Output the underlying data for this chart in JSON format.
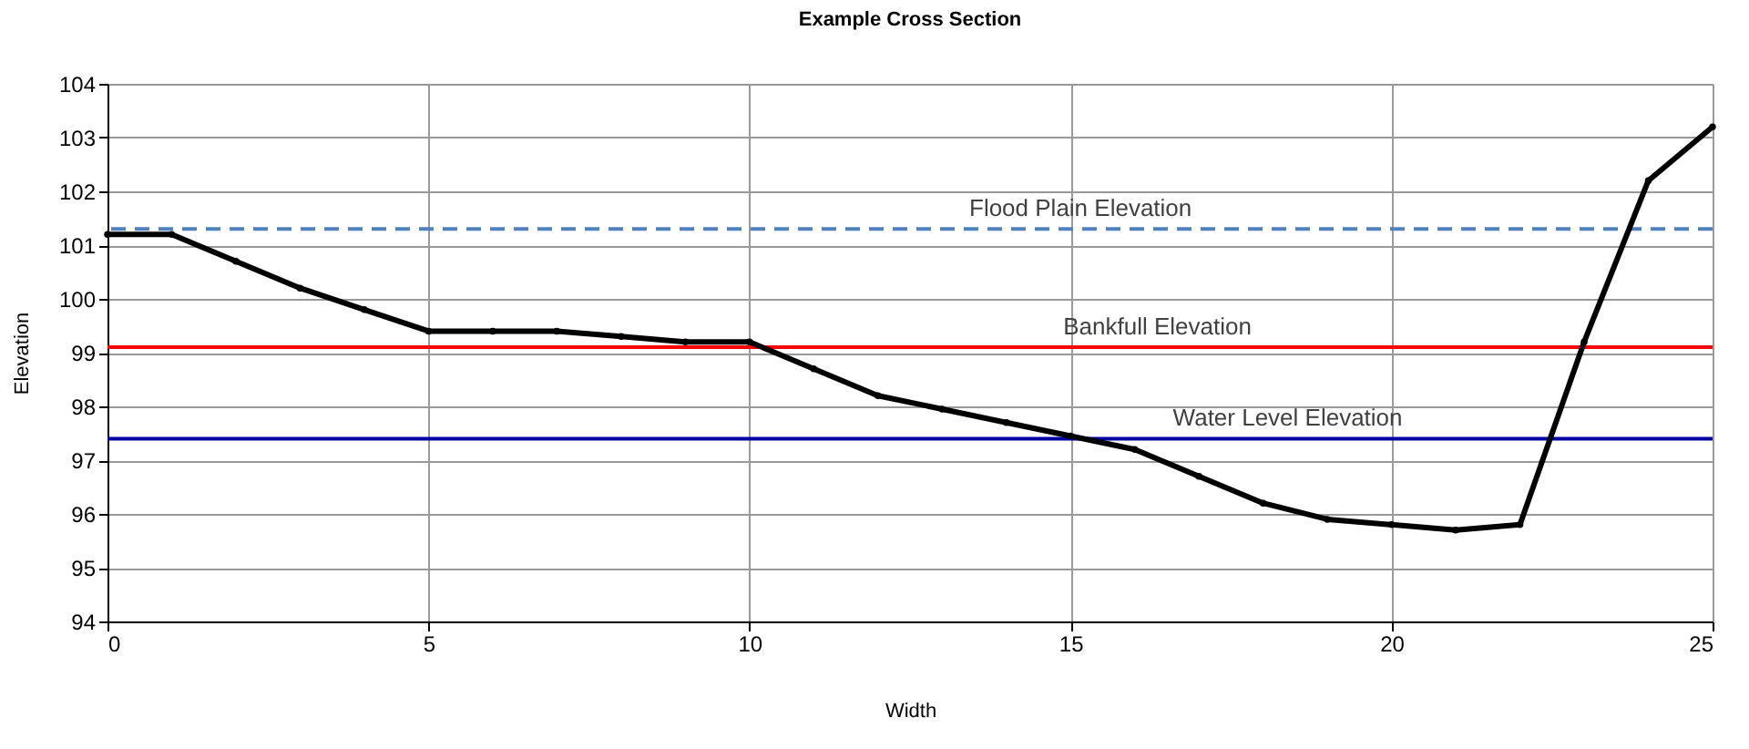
{
  "chart_data": {
    "type": "line",
    "title": "Example Cross Section",
    "xlabel": "Width",
    "ylabel": "Elevation",
    "x": [
      0,
      1,
      2,
      3,
      4,
      5,
      6,
      7,
      8,
      9,
      10,
      11,
      12,
      13,
      14,
      15,
      16,
      17,
      18,
      19,
      20,
      21,
      22,
      23,
      24,
      25
    ],
    "series": [
      {
        "color": "#000000",
        "values": [
          101.2,
          101.2,
          100.7,
          100.2,
          99.8,
          99.4,
          99.4,
          99.4,
          99.3,
          99.2,
          99.2,
          98.7,
          98.2,
          97.95,
          97.7,
          97.45,
          97.2,
          96.7,
          96.2,
          95.9,
          95.8,
          95.7,
          95.8,
          99.2,
          102.2,
          103.2
        ]
      }
    ],
    "xlim": [
      0,
      25
    ],
    "xticks": [
      0,
      5,
      10,
      15,
      20,
      25
    ],
    "ylim": [
      94,
      104
    ],
    "yticks": [
      94,
      95,
      96,
      97,
      98,
      99,
      100,
      101,
      102,
      103,
      104
    ],
    "ref_lines": [
      {
        "axis": "y",
        "value": 101.3,
        "label": "Flood Plain Elevation",
        "color": "#4f81bd",
        "line_style": "dashed"
      },
      {
        "axis": "y",
        "value": 99.1,
        "label": "Bankfull Elevation",
        "color": "#ff0000",
        "line_style": "solid"
      },
      {
        "axis": "y",
        "value": 97.4,
        "label": "Water Level Elevation",
        "color": "#0000a0",
        "line_style": "solid"
      }
    ],
    "grid": true,
    "marker": "circle",
    "line_style": "solid"
  }
}
